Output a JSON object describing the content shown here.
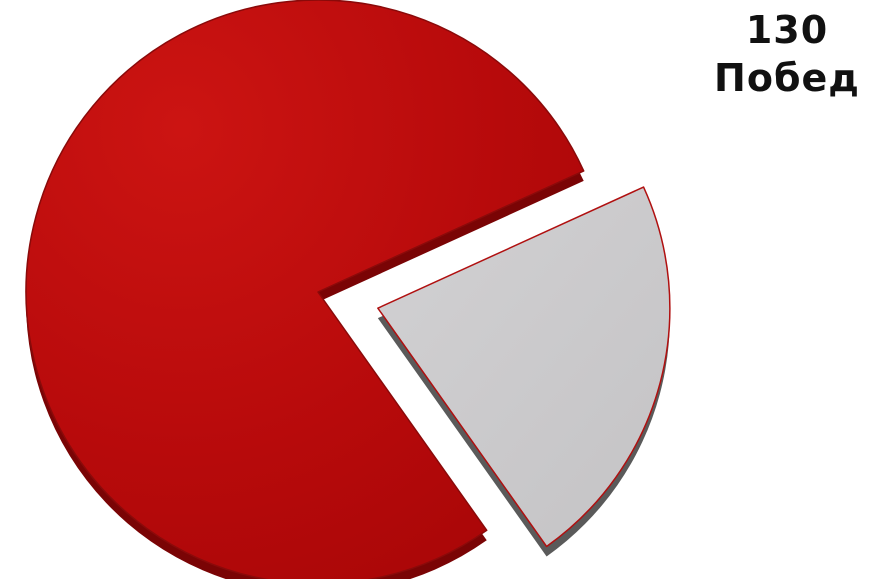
{
  "chart_data": {
    "type": "pie",
    "style": "3d-exploded",
    "slices": [
      {
        "value": 78,
        "color": "#b5090b",
        "exploded": false
      },
      {
        "value": 22,
        "color": "#c6c6c6",
        "exploded": true
      }
    ],
    "annotation": {
      "value_text": "130",
      "label_text": "Побед"
    }
  }
}
